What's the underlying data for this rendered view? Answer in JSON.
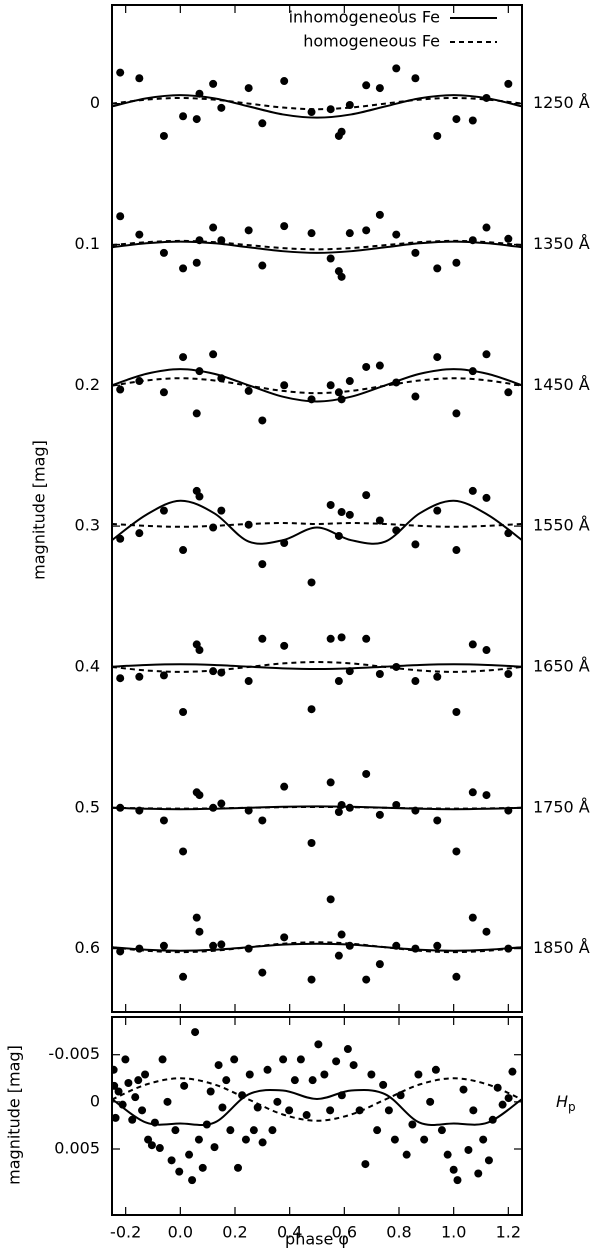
{
  "chart_data": [
    {
      "type": "scatter",
      "ylabel": "magnitude [mag]",
      "color": "#000000",
      "y_inverted": true,
      "legend": "top-right",
      "xlim": [
        -0.25,
        1.25
      ],
      "xticks": [
        -0.2,
        {
          "value": 0,
          "label": "0.0"
        },
        0.2,
        0.4,
        0.6,
        0.8,
        {
          "value": 1,
          "label": "1.0"
        },
        1.2
      ],
      "ylim": [
        -0.07,
        0.645
      ],
      "yticks": [
        0,
        0.1,
        0.2,
        0.3,
        0.4,
        0.5,
        0.6
      ],
      "series": [
        {
          "name": "inhomogeneous Fe",
          "dash": "solid"
        },
        {
          "name": "homogeneous Fe",
          "dash": "dashed"
        }
      ],
      "curve_x": [
        -0.25,
        -0.125,
        0,
        0.125,
        0.25,
        0.375,
        0.5,
        0.625,
        0.75,
        0.875,
        1,
        1.125,
        1.25
      ],
      "points_x": [
        -0.22,
        -0.15,
        -0.06,
        0.01,
        0.06,
        0.07,
        0.12,
        0.15,
        0.25,
        0.3,
        0.38,
        0.48,
        0.55,
        0.58,
        0.59,
        0.62,
        0.68,
        0.73,
        0.79,
        0.86,
        0.94,
        1.01,
        1.07,
        1.12,
        1.2
      ],
      "bands": [
        {
          "name": "1250 Å",
          "points": [
            -0.022,
            -0.018,
            0.023,
            0.009,
            0.011,
            -0.007,
            -0.014,
            0.003,
            -0.011,
            0.014,
            -0.016,
            0.006,
            0.004,
            0.023,
            0.02,
            0.001,
            -0.013,
            -0.011,
            -0.025,
            -0.018,
            0.023,
            0.011,
            0.012,
            -0.004,
            -0.014
          ],
          "inhomogeneous": [
            0.002,
            -0.0037,
            -0.006,
            -0.0037,
            0.002,
            0.0077,
            0.01,
            0.0077,
            0.002,
            -0.0037,
            -0.006,
            -0.0037,
            0.002
          ],
          "homogeneous": [
            0,
            -0.0028,
            -0.004,
            -0.0028,
            0,
            0.0028,
            0.004,
            0.0028,
            0,
            -0.0028,
            -0.004,
            -0.0028,
            0
          ]
        },
        {
          "name": "1350 Å",
          "points": [
            0.08,
            0.093,
            0.106,
            0.117,
            0.113,
            0.097,
            0.088,
            0.097,
            0.09,
            0.115,
            0.087,
            0.092,
            0.11,
            0.119,
            0.123,
            0.092,
            0.09,
            0.079,
            0.093,
            0.106,
            0.117,
            0.113,
            0.097,
            0.088,
            0.096
          ],
          "inhomogeneous": [
            0.102,
            0.0992,
            0.098,
            0.0992,
            0.102,
            0.1048,
            0.106,
            0.1048,
            0.102,
            0.0992,
            0.098,
            0.0992,
            0.102
          ],
          "homogeneous": [
            0.1005,
            0.0984,
            0.0975,
            0.0984,
            0.1005,
            0.1026,
            0.1035,
            0.1026,
            0.1005,
            0.0984,
            0.0975,
            0.0984,
            0.1005
          ]
        },
        {
          "name": "1450 Å",
          "points": [
            0.203,
            0.197,
            0.205,
            0.18,
            0.22,
            0.19,
            0.178,
            0.195,
            0.204,
            0.225,
            0.2,
            0.21,
            0.2,
            0.205,
            0.21,
            0.197,
            0.187,
            0.186,
            0.198,
            0.208,
            0.18,
            0.22,
            0.19,
            0.178,
            0.205
          ],
          "inhomogeneous": [
            0.2,
            0.1919,
            0.1885,
            0.1919,
            0.2,
            0.2081,
            0.2115,
            0.2081,
            0.2,
            0.1919,
            0.1885,
            0.1919,
            0.2
          ],
          "homogeneous": [
            0.2003,
            0.1966,
            0.195,
            0.1966,
            0.2003,
            0.204,
            0.2056,
            0.204,
            0.2003,
            0.1966,
            0.195,
            0.1966,
            0.2003
          ]
        },
        {
          "name": "1550 Å",
          "points": [
            0.309,
            0.305,
            0.289,
            0.317,
            0.275,
            0.279,
            0.301,
            0.289,
            0.299,
            0.327,
            0.312,
            0.34,
            0.285,
            0.307,
            0.29,
            0.292,
            0.278,
            0.296,
            0.303,
            0.313,
            0.289,
            0.317,
            0.275,
            0.28,
            0.305
          ],
          "inhomogeneous": [
            0.31,
            0.292,
            0.282,
            0.291,
            0.311,
            0.31,
            0.301,
            0.31,
            0.311,
            0.291,
            0.282,
            0.292,
            0.31
          ],
          "homogeneous": [
            0.2985,
            0.2998,
            0.3005,
            0.2998,
            0.2985,
            0.2978,
            0.2985,
            0.2978,
            0.2985,
            0.2998,
            0.3005,
            0.2998,
            0.2985
          ]
        },
        {
          "name": "1650 Å",
          "points": [
            0.408,
            0.407,
            0.406,
            0.432,
            0.384,
            0.388,
            0.403,
            0.404,
            0.41,
            0.38,
            0.385,
            0.43,
            0.38,
            0.41,
            0.379,
            0.403,
            0.38,
            0.405,
            0.4,
            0.41,
            0.407,
            0.432,
            0.384,
            0.388,
            0.405
          ],
          "inhomogeneous": [
            0.3998,
            0.3986,
            0.3981,
            0.3986,
            0.3998,
            0.401,
            0.4015,
            0.401,
            0.3998,
            0.3986,
            0.3981,
            0.3986,
            0.3998
          ],
          "homogeneous": [
            0.4,
            0.4025,
            0.4035,
            0.4025,
            0.4,
            0.3975,
            0.3965,
            0.3975,
            0.4,
            0.4025,
            0.4035,
            0.4025,
            0.4
          ]
        },
        {
          "name": "1750 Å",
          "points": [
            0.5,
            0.502,
            0.509,
            0.531,
            0.489,
            0.491,
            0.5,
            0.497,
            0.502,
            0.509,
            0.485,
            0.525,
            0.482,
            0.503,
            0.498,
            0.5,
            0.476,
            0.505,
            0.498,
            0.502,
            0.509,
            0.531,
            0.489,
            0.491,
            0.502
          ],
          "inhomogeneous": [
            0.5,
            0.5007,
            0.501,
            0.5007,
            0.5,
            0.4993,
            0.499,
            0.4993,
            0.5,
            0.5007,
            0.501,
            0.5007,
            0.5
          ],
          "homogeneous": [
            0.5,
            0.5004,
            0.5006,
            0.5004,
            0.5,
            0.4996,
            0.4994,
            0.4996,
            0.5,
            0.5004,
            0.5006,
            0.5004,
            0.5
          ]
        },
        {
          "name": "1850 Å",
          "points": [
            0.602,
            0.6,
            0.598,
            0.62,
            0.578,
            0.588,
            0.598,
            0.597,
            0.6,
            0.617,
            0.592,
            0.622,
            0.565,
            0.605,
            0.59,
            0.598,
            0.622,
            0.611,
            0.598,
            0.6,
            0.598,
            0.62,
            0.578,
            0.588,
            0.6
          ],
          "inhomogeneous": [
            0.599,
            0.6008,
            0.6015,
            0.6008,
            0.599,
            0.5972,
            0.5965,
            0.5972,
            0.599,
            0.6008,
            0.6015,
            0.6008,
            0.599
          ],
          "homogeneous": [
            0.599,
            0.6015,
            0.6025,
            0.6015,
            0.599,
            0.5965,
            0.5955,
            0.5965,
            0.599,
            0.6015,
            0.6025,
            0.6015,
            0.599
          ]
        }
      ]
    },
    {
      "type": "scatter",
      "ylabel": "magnitude [mag]",
      "xlabel": "phase φ",
      "color": "#000000",
      "y_inverted": true,
      "xlim": [
        -0.25,
        1.25
      ],
      "xticks": [
        -0.2,
        {
          "value": 0,
          "label": "0.0"
        },
        0.2,
        0.4,
        0.6,
        0.8,
        {
          "value": 1,
          "label": "1.0"
        },
        1.2
      ],
      "ylim": [
        -0.009,
        0.012
      ],
      "yticks": [
        -0.005,
        0,
        0.005
      ],
      "curve_x": [
        -0.25,
        -0.125,
        0,
        0.125,
        0.25,
        0.375,
        0.5,
        0.625,
        0.75,
        0.875,
        1,
        1.125,
        1.25
      ],
      "bands": [
        {
          "name": "H",
          "name_subscript": "p",
          "points_x": [
            -0.244,
            -0.242,
            -0.237,
            -0.226,
            -0.211,
            -0.201,
            -0.19,
            -0.176,
            -0.165,
            -0.154,
            -0.14,
            -0.129,
            -0.118,
            -0.104,
            -0.093,
            -0.075,
            -0.065,
            -0.047,
            -0.032,
            -0.018,
            -0.004,
            0.014,
            0.032,
            0.043,
            0.054,
            0.068,
            0.082,
            0.097,
            0.111,
            0.125,
            0.14,
            0.154,
            0.168,
            0.183,
            0.197,
            0.211,
            0.226,
            0.24,
            0.254,
            0.269,
            0.283,
            0.301,
            0.319,
            0.337,
            0.355,
            0.376,
            0.398,
            0.419,
            0.441,
            0.462,
            0.484,
            0.505,
            0.527,
            0.548,
            0.57,
            0.591,
            0.613,
            0.634,
            0.656,
            0.677,
            0.699,
            0.72,
            0.742,
            0.763,
            0.785,
            0.806,
            0.828,
            0.849,
            0.871,
            0.892,
            0.914,
            0.935,
            0.957,
            0.978,
            1.0,
            1.014,
            1.036,
            1.054,
            1.072,
            1.09,
            1.108,
            1.129,
            1.143,
            1.161,
            1.179,
            1.201,
            1.215
          ],
          "points": [
            -0.0034,
            -0.0017,
            0.0017,
            -0.0011,
            0.0003,
            -0.0045,
            -0.002,
            0.0019,
            -0.0005,
            -0.0023,
            0.0009,
            -0.0029,
            0.004,
            0.0046,
            0.0022,
            0.0049,
            -0.0045,
            0,
            0.0062,
            0.003,
            0.0074,
            -0.0017,
            0.0056,
            0.0083,
            -0.0074,
            0.004,
            0.007,
            0.0024,
            -0.0011,
            0.0048,
            -0.0039,
            0.0006,
            -0.0023,
            0.003,
            -0.0045,
            0.007,
            -0.0007,
            0.004,
            -0.0029,
            0.003,
            0.0006,
            0.0043,
            -0.0034,
            0.003,
            0,
            -0.0045,
            0.0009,
            -0.0023,
            -0.0045,
            0.0014,
            -0.0023,
            -0.0061,
            -0.0029,
            0.0009,
            -0.0043,
            -0.0007,
            -0.0056,
            -0.0039,
            0.0009,
            0.0066,
            -0.0029,
            0.003,
            -0.0018,
            0.0009,
            0.004,
            -0.0007,
            0.0056,
            0.0024,
            -0.0029,
            0.004,
            0,
            -0.0034,
            0.003,
            0.0056,
            0.0072,
            0.0083,
            -0.0013,
            0.0051,
            0.0009,
            0.0076,
            0.004,
            0.0062,
            0.0019,
            -0.0015,
            0.0003,
            -0.0004,
            -0.0032
          ],
          "inhomogeneous": [
            -0.0003,
            0.0022,
            0.0023,
            0.0022,
            -0.0008,
            -0.0012,
            -0.0003,
            -0.0012,
            -0.0008,
            0.0022,
            0.0023,
            0.0022,
            -0.0003
          ],
          "homogeneous": [
            -0.00025,
            -0.00184,
            -0.0025,
            -0.00184,
            -0.00025,
            0.00134,
            0.002,
            0.00134,
            -0.00025,
            -0.00184,
            -0.0025,
            -0.00184,
            -0.00025
          ]
        }
      ]
    }
  ]
}
